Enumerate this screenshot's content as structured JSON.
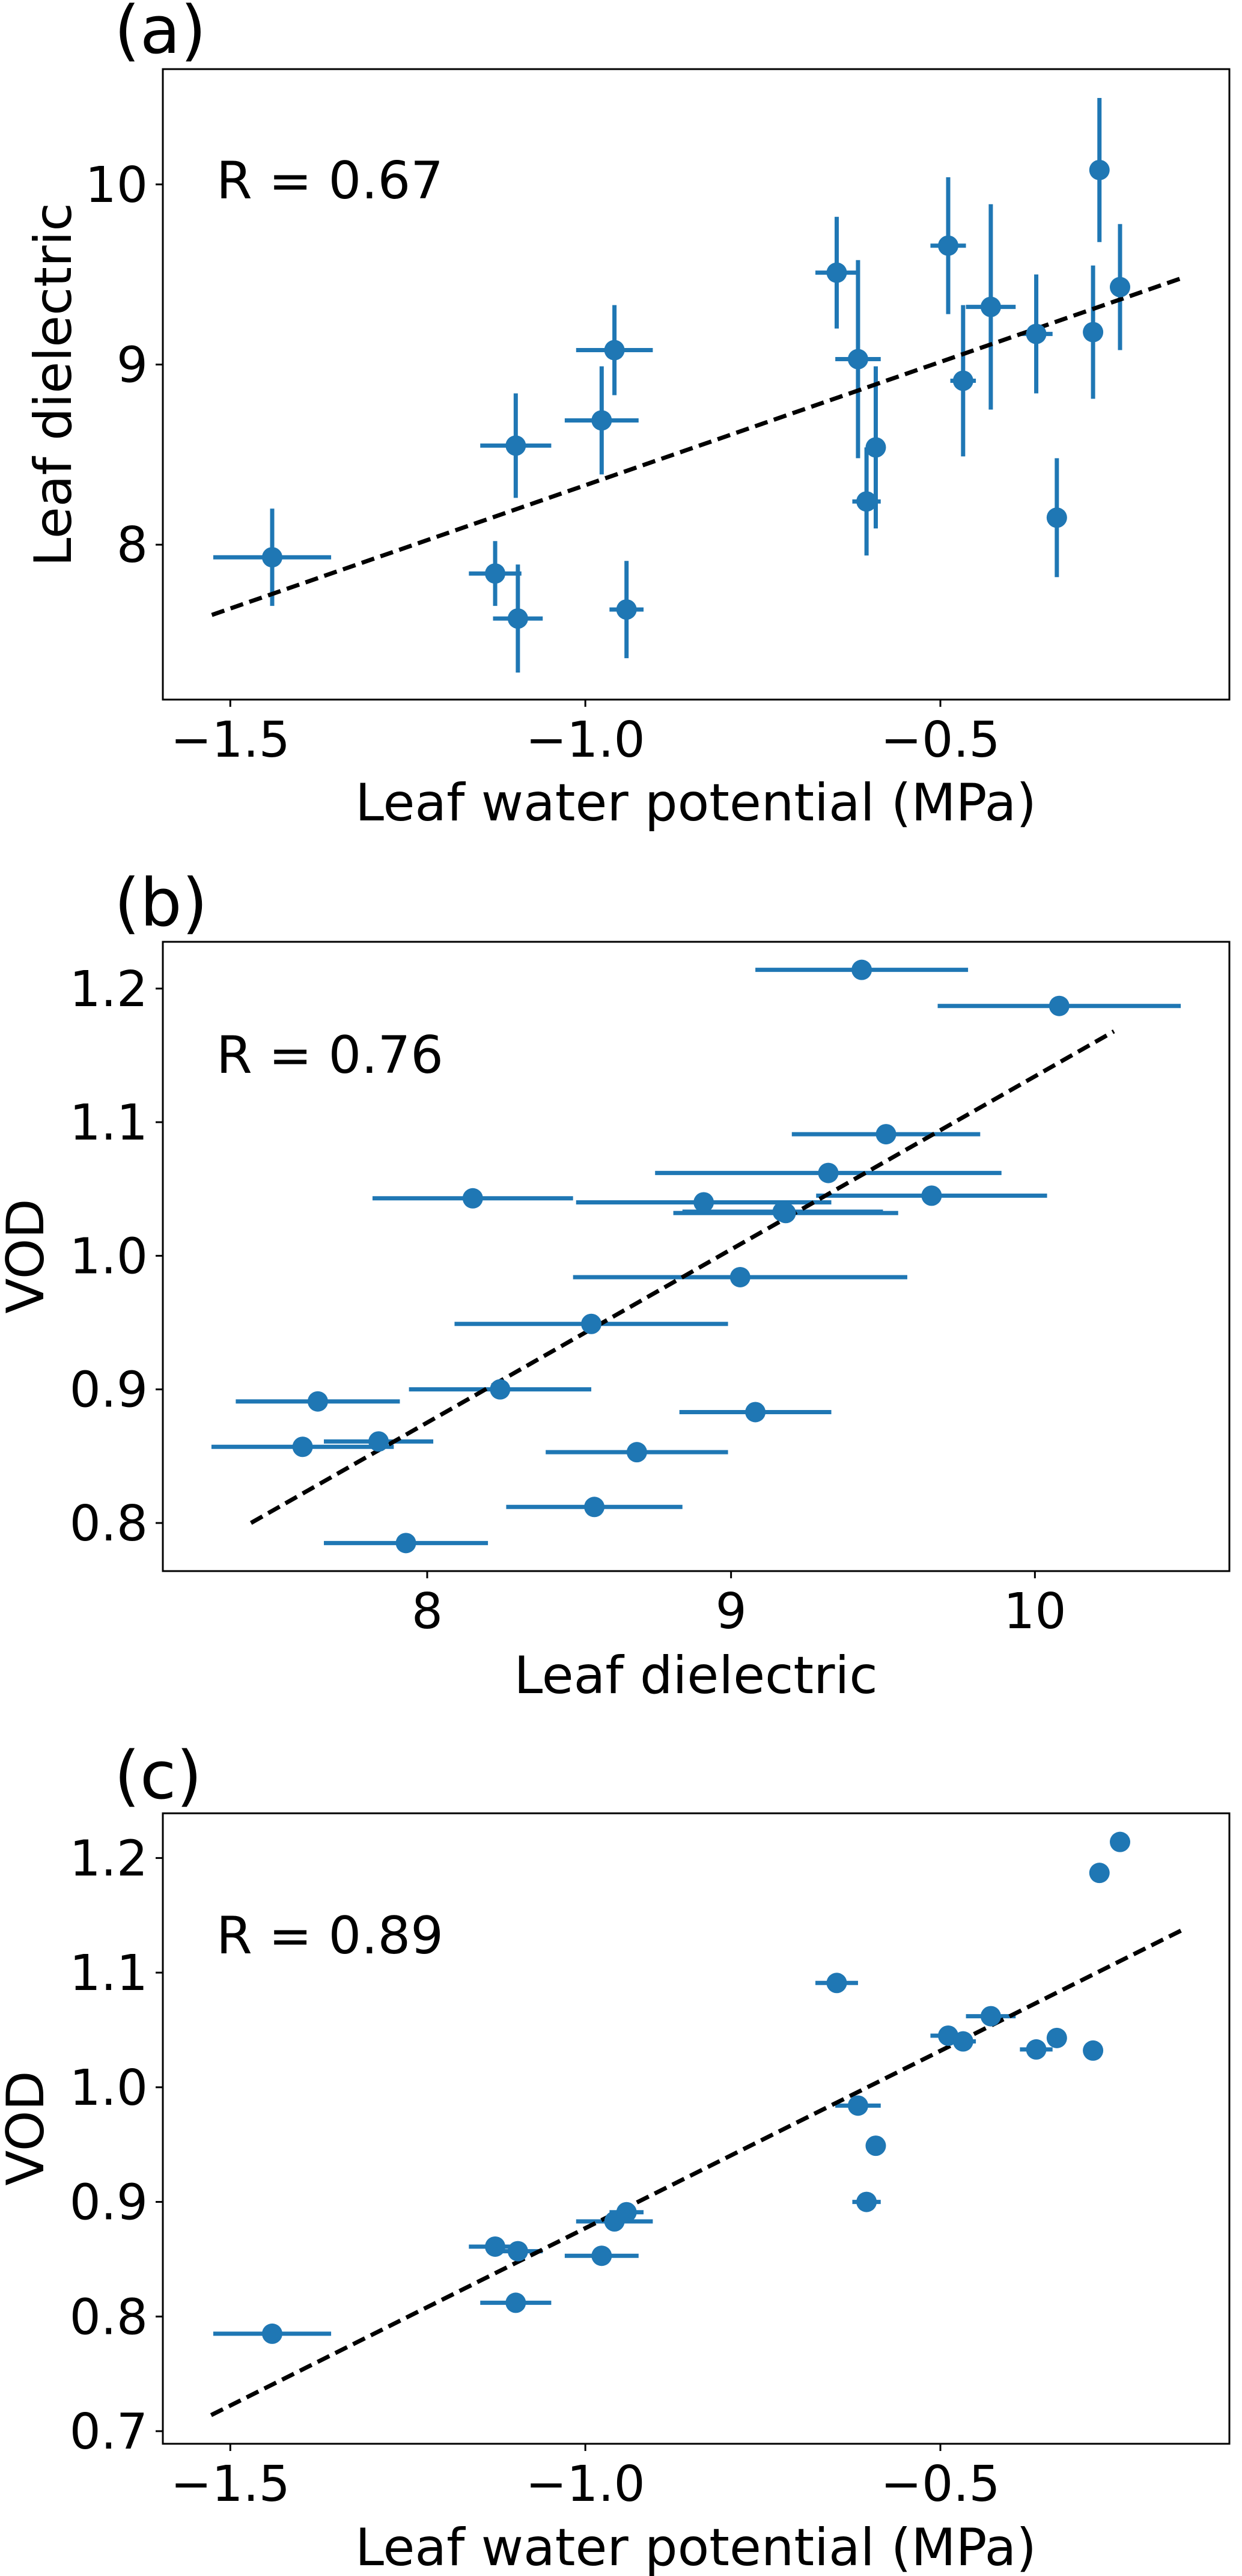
{
  "chart_data": [
    {
      "type": "scatter",
      "panel_label": "(a)",
      "annotation": "R = 0.67",
      "xlabel": "Leaf water potential (MPa)",
      "ylabel": "Leaf dielectric",
      "xlim": [
        -1.595,
        -0.093
      ],
      "ylim": [
        7.14,
        10.64
      ],
      "xticks": [
        -1.5,
        -1.0,
        -0.5
      ],
      "xtick_labels": [
        "−1.5",
        "−1.0",
        "−0.5"
      ],
      "yticks": [
        8,
        9,
        10
      ],
      "ytick_labels": [
        "8",
        "9",
        "10"
      ],
      "grid": false,
      "color": "#1f77b4",
      "fit_color": "#000000",
      "x": [
        -1.441,
        -1.127,
        -1.095,
        -1.098,
        -0.977,
        -0.959,
        -0.942,
        -0.646,
        -0.616,
        -0.591,
        -0.604,
        -0.489,
        -0.468,
        -0.429,
        -0.365,
        -0.336,
        -0.285,
        -0.276,
        -0.247
      ],
      "y": [
        7.93,
        7.84,
        7.59,
        8.55,
        8.69,
        9.08,
        7.64,
        9.51,
        9.03,
        8.54,
        8.24,
        9.66,
        8.91,
        9.32,
        9.17,
        8.15,
        9.18,
        10.08,
        9.43
      ],
      "xerr": [
        0.083,
        0.037,
        0.035,
        0.05,
        0.052,
        0.054,
        0.024,
        0.03,
        0.032,
        0.01,
        0.02,
        0.025,
        0.018,
        0.035,
        0.023,
        0,
        0,
        0,
        0
      ],
      "yerr": [
        0.27,
        0.18,
        0.3,
        0.29,
        0.3,
        0.25,
        0.27,
        0.31,
        0.55,
        0.45,
        0.3,
        0.38,
        0.42,
        0.57,
        0.33,
        0.33,
        0.37,
        0.4,
        0.35
      ],
      "fit": {
        "x": [
          -1.526,
          -0.16
        ],
        "y": [
          7.61,
          9.48
        ]
      }
    },
    {
      "type": "scatter",
      "panel_label": "(b)",
      "annotation": "R = 0.76",
      "xlabel": "Leaf dielectric",
      "ylabel": "VOD",
      "xlim": [
        7.13,
        10.64
      ],
      "ylim": [
        0.764,
        1.235
      ],
      "xticks": [
        8,
        9,
        10
      ],
      "xtick_labels": [
        "8",
        "9",
        "10"
      ],
      "yticks": [
        0.8,
        0.9,
        1.0,
        1.1,
        1.2
      ],
      "ytick_labels": [
        "0.8",
        "0.9",
        "1.0",
        "1.1",
        "1.2"
      ],
      "grid": false,
      "color": "#1f77b4",
      "fit_color": "#000000",
      "x": [
        7.93,
        7.84,
        7.59,
        8.55,
        8.69,
        9.08,
        7.64,
        9.51,
        9.03,
        8.54,
        8.24,
        9.66,
        8.91,
        9.32,
        9.17,
        8.15,
        9.18,
        10.08,
        9.43
      ],
      "y": [
        0.785,
        0.861,
        0.857,
        0.812,
        0.853,
        0.883,
        0.891,
        1.091,
        0.984,
        0.949,
        0.9,
        1.045,
        1.04,
        1.062,
        1.033,
        1.043,
        1.032,
        1.187,
        1.214
      ],
      "xerr": [
        0.27,
        0.18,
        0.3,
        0.29,
        0.3,
        0.25,
        0.27,
        0.31,
        0.55,
        0.45,
        0.3,
        0.38,
        0.42,
        0.57,
        0.33,
        0.33,
        0.37,
        0.4,
        0.35
      ],
      "yerr": [],
      "fit": {
        "x": [
          7.42,
          10.26
        ],
        "y": [
          0.8,
          1.168
        ]
      }
    },
    {
      "type": "scatter",
      "panel_label": "(c)",
      "annotation": "R = 0.89",
      "xlabel": "Leaf water potential (MPa)",
      "ylabel": "VOD",
      "xlim": [
        -1.595,
        -0.093
      ],
      "ylim": [
        0.689,
        1.239
      ],
      "xticks": [
        -1.5,
        -1.0,
        -0.5
      ],
      "xtick_labels": [
        "−1.5",
        "−1.0",
        "−0.5"
      ],
      "yticks": [
        0.7,
        0.8,
        0.9,
        1.0,
        1.1,
        1.2
      ],
      "ytick_labels": [
        "0.7",
        "0.8",
        "0.9",
        "1.0",
        "1.1",
        "1.2"
      ],
      "grid": false,
      "color": "#1f77b4",
      "fit_color": "#000000",
      "x": [
        -1.441,
        -1.127,
        -1.095,
        -1.098,
        -0.977,
        -0.959,
        -0.942,
        -0.646,
        -0.616,
        -0.591,
        -0.604,
        -0.489,
        -0.468,
        -0.429,
        -0.365,
        -0.336,
        -0.285,
        -0.276,
        -0.247
      ],
      "y": [
        0.785,
        0.861,
        0.857,
        0.812,
        0.853,
        0.883,
        0.891,
        1.091,
        0.984,
        0.949,
        0.9,
        1.045,
        1.04,
        1.062,
        1.033,
        1.043,
        1.032,
        1.187,
        1.214
      ],
      "xerr": [
        0.083,
        0.037,
        0.035,
        0.05,
        0.052,
        0.054,
        0.024,
        0.03,
        0.032,
        0.01,
        0.02,
        0.025,
        0.018,
        0.035,
        0.023,
        0,
        0,
        0,
        0
      ],
      "yerr": [],
      "fit": {
        "x": [
          -1.527,
          -0.16
        ],
        "y": [
          0.714,
          1.137
        ]
      }
    }
  ]
}
